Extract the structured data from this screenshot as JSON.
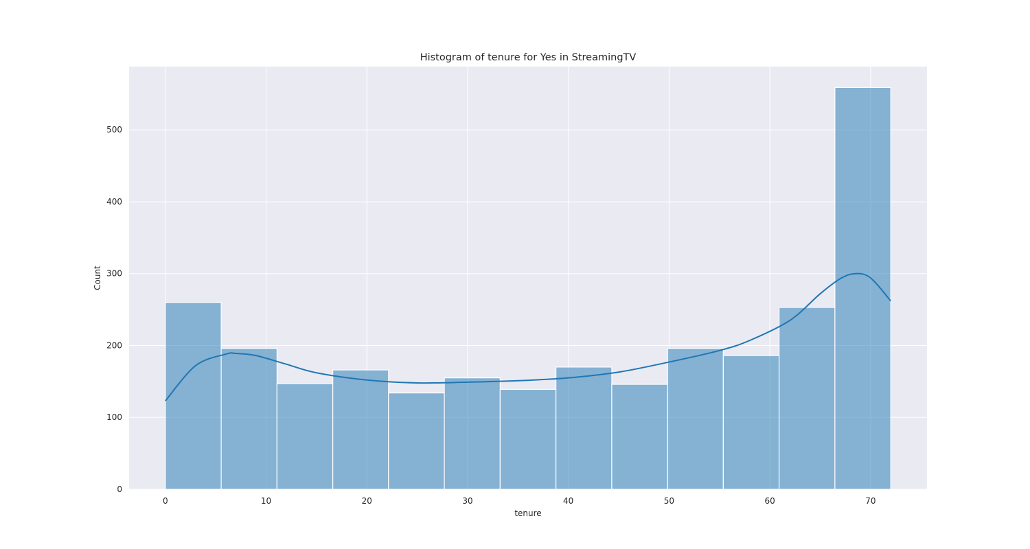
{
  "chart_data": {
    "type": "histogram",
    "title": "Histogram of tenure for Yes in StreamingTV",
    "xlabel": "tenure",
    "ylabel": "Count",
    "xlim": [
      -3.6,
      75.6
    ],
    "ylim": [
      0,
      588
    ],
    "x_ticks": [
      0,
      10,
      20,
      30,
      40,
      50,
      60,
      70
    ],
    "y_ticks": [
      0,
      100,
      200,
      300,
      400,
      500
    ],
    "grid": true,
    "bins": [
      {
        "x0": 0.0,
        "x1": 5.54,
        "count": 260
      },
      {
        "x0": 5.54,
        "x1": 11.08,
        "count": 196
      },
      {
        "x0": 11.08,
        "x1": 16.62,
        "count": 147
      },
      {
        "x0": 16.62,
        "x1": 22.15,
        "count": 166
      },
      {
        "x0": 22.15,
        "x1": 27.69,
        "count": 134
      },
      {
        "x0": 27.69,
        "x1": 33.23,
        "count": 155
      },
      {
        "x0": 33.23,
        "x1": 38.77,
        "count": 139
      },
      {
        "x0": 38.77,
        "x1": 44.31,
        "count": 170
      },
      {
        "x0": 44.31,
        "x1": 49.85,
        "count": 146
      },
      {
        "x0": 49.85,
        "x1": 55.38,
        "count": 196
      },
      {
        "x0": 55.38,
        "x1": 60.92,
        "count": 186
      },
      {
        "x0": 60.92,
        "x1": 66.46,
        "count": 253
      },
      {
        "x0": 66.46,
        "x1": 72.0,
        "count": 559
      }
    ],
    "kde": {
      "x": [
        0,
        3,
        6,
        7,
        9,
        12,
        15,
        20,
        25,
        30,
        35,
        40,
        45,
        50,
        55,
        58,
        62,
        65,
        67,
        68.5,
        70,
        72
      ],
      "y": [
        123,
        172,
        188,
        189,
        186,
        174,
        162,
        152,
        148,
        149,
        151,
        155,
        163,
        177,
        193,
        207,
        235,
        272,
        293,
        300,
        294,
        262
      ]
    },
    "colors": {
      "background": "#eaeaf2",
      "grid": "#ffffff",
      "bar_fill": "#1f77b4",
      "bar_opacity": 0.5,
      "bar_edge": "#ffffff",
      "kde_line": "#1f77b4"
    }
  }
}
